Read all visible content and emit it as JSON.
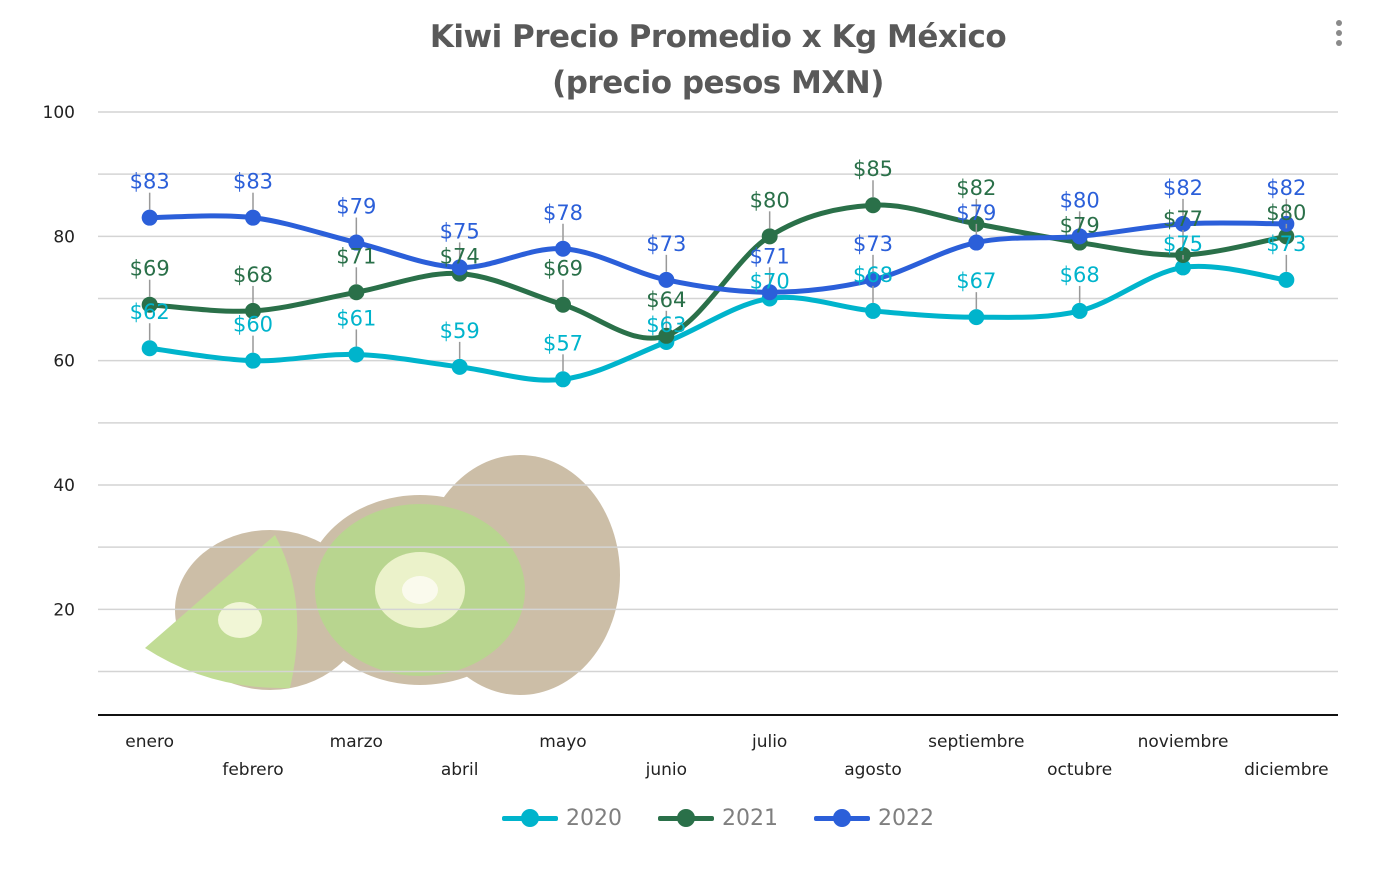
{
  "chart_data": {
    "type": "line",
    "title": "Kiwi Precio Promedio x Kg México\n(precio pesos MXN)",
    "title_lines": [
      "Kiwi Precio Promedio x Kg México",
      "(precio pesos MXN)"
    ],
    "categories": [
      "enero",
      "febrero",
      "marzo",
      "abril",
      "mayo",
      "junio",
      "julio",
      "agosto",
      "septiembre",
      "octubre",
      "noviembre",
      "diciembre"
    ],
    "series": [
      {
        "name": "2020",
        "color": "#00b4cc",
        "values": [
          62,
          60,
          61,
          59,
          57,
          63,
          70,
          68,
          67,
          68,
          75,
          73
        ]
      },
      {
        "name": "2021",
        "color": "#2a7049",
        "values": [
          69,
          68,
          71,
          74,
          69,
          64,
          80,
          85,
          82,
          79,
          77,
          80
        ]
      },
      {
        "name": "2022",
        "color": "#2b5fd9",
        "values": [
          83,
          83,
          79,
          75,
          78,
          73,
          71,
          73,
          79,
          80,
          82,
          82
        ]
      }
    ],
    "data_label_prefix": "$",
    "y_ticks": [
      20,
      40,
      60,
      80,
      100
    ],
    "ylim": [
      3,
      100
    ],
    "grid": true,
    "gridline_step": 10,
    "smooth": true,
    "legend_position": "bottom",
    "xlabel": "",
    "ylabel": ""
  },
  "menu_icon": "more-vertical-icon",
  "background_image": "kiwi-fruit"
}
